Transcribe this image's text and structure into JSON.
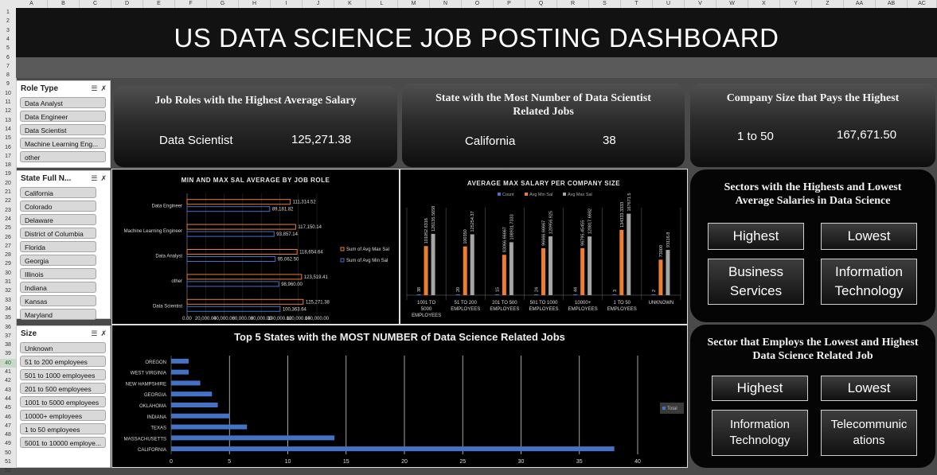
{
  "spreadsheet": {
    "columns": [
      "A",
      "B",
      "C",
      "D",
      "E",
      "F",
      "G",
      "H",
      "I",
      "J",
      "K",
      "L",
      "M",
      "N",
      "O",
      "P",
      "Q",
      "R",
      "S",
      "T",
      "U",
      "V",
      "W",
      "X",
      "Y",
      "Z",
      "AA",
      "AB",
      "AC"
    ],
    "rows": [
      "1",
      "2",
      "3",
      "4",
      "5",
      "6",
      "7",
      "8",
      "9",
      "10",
      "11",
      "12",
      "13",
      "14",
      "15",
      "16",
      "17",
      "18",
      "19",
      "20",
      "21",
      "22",
      "23",
      "24",
      "25",
      "26",
      "27",
      "28",
      "29",
      "30",
      "31",
      "32",
      "33",
      "34",
      "35",
      "36",
      "37",
      "38",
      "39",
      "40",
      "41",
      "42",
      "43",
      "44",
      "45",
      "46",
      "47",
      "48",
      "49",
      "50",
      "51",
      "52"
    ],
    "selected_row": "40"
  },
  "dashboard": {
    "title": "US DATA SCIENCE JOB POSTING DASHBOARD"
  },
  "slicers": {
    "role_type": {
      "title": "Role Type",
      "items": [
        "Data Analyst",
        "Data Engineer",
        "Data Scientist",
        "Machine Learning Eng...",
        "other"
      ]
    },
    "state": {
      "title": "State Full N...",
      "items": [
        "California",
        "Colorado",
        "Delaware",
        "District of Columbia",
        "Florida",
        "Georgia",
        "Illinois",
        "Indiana",
        "Kansas",
        "Maryland"
      ]
    },
    "size": {
      "title": "Size",
      "items": [
        "Unknown",
        "51 to 200 employees",
        "501 to 1000 employees",
        "201 to 500 employees",
        "1001 to 5000 employees",
        "10000+ employees",
        "1 to 50 employees",
        "5001 to 10000 employe..."
      ]
    }
  },
  "kpi": {
    "job_roles": {
      "title": "Job Roles with the Highest Average Salary",
      "name": "Data Scientist",
      "value": "125,271.38"
    },
    "state": {
      "title": "State with the Most Number of Data Scientist Related Jobs",
      "name": "California",
      "value": "38"
    },
    "company": {
      "title": "Company Size that Pays the Highest",
      "name": "1 to 50",
      "value": "167,671.50"
    }
  },
  "sectors_salary": {
    "title": "Sectors with the Highests and Lowest Average Salaries in Data Science",
    "highest_label": "Highest",
    "lowest_label": "Lowest",
    "highest_value": "Business Services",
    "lowest_value": "Information Technology"
  },
  "sectors_employ": {
    "title": "Sector that Employs the Lowest and Highest Data Science Related Job",
    "highest_label": "Highest",
    "lowest_label": "Lowest",
    "highest_value": "Information Technology",
    "lowest_value": "Telecommunications"
  },
  "colors": {
    "orange": "#ed7d31",
    "blue": "#4472c4",
    "gray": "#a5a5a5",
    "accent_bar": "#4472c4"
  },
  "chart_data": [
    {
      "type": "bar",
      "title": "MIN AND MAX SAL AVERAGE BY JOB ROLE",
      "orientation": "horizontal",
      "categories": [
        "Data Engineer",
        "Machine Learning Engineer",
        "Data Analyst",
        "other",
        "Data Scientist"
      ],
      "series": [
        {
          "name": "Sum of Avg Max Sal",
          "values": [
            111314.52,
            117150.14,
            118654.64,
            123519.41,
            125271.38
          ],
          "labels": [
            "111,314.52",
            "117,150.14",
            "118,654.64",
            "123,519.41",
            "125,271.38"
          ]
        },
        {
          "name": "Sum of Avg Min Sal",
          "values": [
            89181.82,
            93857.14,
            95062.5,
            98960.0,
            100363.64
          ],
          "labels": [
            "89,181.82",
            "93,857.14",
            "95,062.50",
            "98,960.00",
            "100,363.64"
          ]
        }
      ],
      "xticks": [
        "0.00",
        "20,000.00",
        "40,000.00",
        "60,000.00",
        "80,000.00",
        "100,000.00",
        "120,000.00",
        "140,000.00"
      ],
      "xlim": [
        0,
        140000
      ]
    },
    {
      "type": "bar",
      "title": "AVERAGE MAX SALARY PER COMPANY SIZE",
      "categories": [
        "1001 TO 5000 EMPLOYEES",
        "51 TO 200 EMPLOYEES",
        "201 TO 500 EMPLOYEES",
        "501 TO 1000 EMPLOYEES",
        "10000+ EMPLOYEES",
        "1 TO 50 EMPLOYEES",
        "UNKNOWN"
      ],
      "category_lines": [
        [
          "1001 TO",
          "5000",
          "EMPLOYEES"
        ],
        [
          "51 TO 200",
          "EMPLOYEES"
        ],
        [
          "201 TO 500",
          "EMPLOYEES"
        ],
        [
          "501 TO 1000",
          "EMPLOYEES"
        ],
        [
          "10000+",
          "EMPLOYEES"
        ],
        [
          "1 TO 50",
          "EMPLOYEES"
        ],
        [
          "UNKNOWN"
        ]
      ],
      "series": [
        {
          "name": "Count",
          "values": [
            38,
            20,
            15,
            24,
            44,
            3,
            2
          ],
          "labels": [
            "38",
            "20",
            "15",
            "24",
            "44",
            "3",
            "2"
          ]
        },
        {
          "name": "Avg Min Sal",
          "values": [
            101052.6316,
            100350,
            83066.66667,
            96666.66667,
            96795.45455,
            134333.3333,
            73000
          ],
          "labels": [
            "101052.6316",
            "100350",
            "83066.66667",
            "96666.66667",
            "96795.45455",
            "134333.3333",
            "73000"
          ]
        },
        {
          "name": "Avg Max Sal",
          "values": [
            126135.5658,
            125254.37,
            108931.7333,
            120956.925,
            120817.6682,
            167671.5,
            93116.8
          ],
          "labels": [
            "126135.5658",
            "125254.37",
            "108931.7333",
            "120956.925",
            "120817.6682",
            "167671.5",
            "93116.8"
          ]
        }
      ],
      "ylim": [
        0,
        180000
      ]
    },
    {
      "type": "bar",
      "title": "Top 5 States with the MOST NUMBER of Data Science Related Jobs",
      "orientation": "horizontal",
      "categories": [
        "OREGON",
        "WEST VIRGINIA",
        "NEW HAMPSHIRE",
        "GEORGIA",
        "OKLAHOMA",
        "INDIANA",
        "TEXAS",
        "MASSACHUSETTS",
        "CALIFORNIA"
      ],
      "values": [
        1.5,
        1.5,
        2.5,
        3.5,
        4,
        5,
        6.5,
        14,
        38
      ],
      "series": [
        {
          "name": "Total"
        }
      ],
      "xticks": [
        "0",
        "5",
        "10",
        "15",
        "20",
        "25",
        "30",
        "35",
        "40"
      ],
      "xlim": [
        0,
        40
      ]
    }
  ]
}
